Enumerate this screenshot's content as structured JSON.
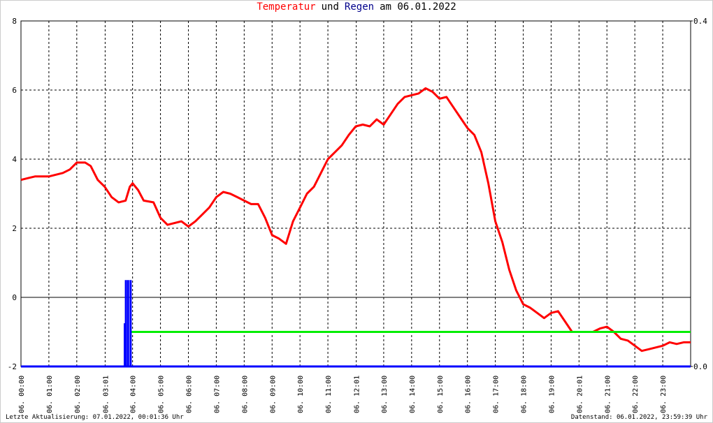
{
  "chart_data": {
    "type": "line",
    "title": [
      "Temperatur",
      "und",
      "Regen",
      "am 06.01.2022"
    ],
    "title_colors": [
      "#ff0000",
      "#000000",
      "#00008b",
      "#000000"
    ],
    "xlim": [
      0,
      24
    ],
    "ylim": [
      -2,
      8
    ],
    "y2lim": [
      0,
      0.4
    ],
    "yticks": [
      -2,
      0,
      2,
      4,
      6,
      8
    ],
    "y2ticks": [
      {
        "value": 0,
        "label": "0.0"
      },
      {
        "value": 0.4,
        "label": "0.4"
      }
    ],
    "xticks": [
      {
        "value": 0,
        "label": "06. 00:00"
      },
      {
        "value": 1,
        "label": "06. 01:00"
      },
      {
        "value": 2,
        "label": "06. 02:00"
      },
      {
        "value": 3.0167,
        "label": "06. 03:01"
      },
      {
        "value": 4,
        "label": "06. 04:00"
      },
      {
        "value": 5,
        "label": "06. 05:00"
      },
      {
        "value": 6,
        "label": "06. 06:00"
      },
      {
        "value": 7,
        "label": "06. 07:00"
      },
      {
        "value": 8,
        "label": "06. 08:00"
      },
      {
        "value": 9,
        "label": "06. 09:00"
      },
      {
        "value": 10,
        "label": "06. 10:00"
      },
      {
        "value": 11,
        "label": "06. 11:00"
      },
      {
        "value": 12.0167,
        "label": "06. 12:01"
      },
      {
        "value": 13,
        "label": "06. 13:00"
      },
      {
        "value": 14,
        "label": "06. 14:00"
      },
      {
        "value": 15,
        "label": "06. 15:00"
      },
      {
        "value": 16,
        "label": "06. 16:00"
      },
      {
        "value": 17,
        "label": "06. 17:00"
      },
      {
        "value": 18,
        "label": "06. 18:00"
      },
      {
        "value": 19,
        "label": "06. 19:00"
      },
      {
        "value": 20,
        "label": "06. 20:01"
      },
      {
        "value": 21,
        "label": "06. 21:00"
      },
      {
        "value": 22,
        "label": "06. 22:00"
      },
      {
        "value": 23,
        "label": "06. 23:00"
      }
    ],
    "grid": true,
    "series": [
      {
        "name": "Temperatur",
        "color": "#ff0000",
        "type": "line",
        "x": [
          0,
          0.25,
          0.5,
          1,
          1.5,
          1.75,
          2,
          2.3,
          2.5,
          2.75,
          3,
          3.25,
          3.5,
          3.75,
          3.9,
          4,
          4.2,
          4.4,
          4.75,
          5,
          5.25,
          5.75,
          6,
          6.25,
          6.5,
          6.75,
          7,
          7.25,
          7.5,
          7.75,
          8,
          8.25,
          8.5,
          8.75,
          9,
          9.25,
          9.5,
          9.75,
          10,
          10.25,
          10.5,
          10.75,
          11,
          11.25,
          11.5,
          11.75,
          12,
          12.25,
          12.5,
          12.75,
          13,
          13.25,
          13.5,
          13.75,
          14,
          14.25,
          14.5,
          14.75,
          15,
          15.25,
          15.5,
          15.75,
          16,
          16.25,
          16.5,
          16.75,
          17,
          17.25,
          17.5,
          17.75,
          18,
          18.25,
          18.5,
          18.75,
          19,
          19.25,
          19.5,
          19.75,
          20,
          20.5,
          20.75,
          21,
          21.25,
          21.5,
          21.75,
          22,
          22.25,
          22.5,
          22.75,
          23,
          23.25,
          23.5,
          23.75,
          24
        ],
        "values": [
          3.4,
          3.45,
          3.5,
          3.5,
          3.6,
          3.7,
          3.9,
          3.9,
          3.8,
          3.4,
          3.2,
          2.9,
          2.75,
          2.8,
          3.2,
          3.3,
          3.1,
          2.8,
          2.75,
          2.3,
          2.1,
          2.2,
          2.05,
          2.2,
          2.4,
          2.6,
          2.9,
          3.05,
          3,
          2.9,
          2.8,
          2.7,
          2.7,
          2.3,
          1.8,
          1.7,
          1.55,
          2.2,
          2.6,
          3,
          3.2,
          3.6,
          4,
          4.2,
          4.4,
          4.7,
          4.95,
          5,
          4.95,
          5.15,
          5,
          5.3,
          5.6,
          5.8,
          5.85,
          5.9,
          6.05,
          5.95,
          5.75,
          5.8,
          5.5,
          5.2,
          4.9,
          4.7,
          4.2,
          3.3,
          2.2,
          1.6,
          0.8,
          0.2,
          -0.2,
          -0.3,
          -0.45,
          -0.6,
          -0.45,
          -0.4,
          -0.7,
          -1,
          -1,
          -1,
          -0.9,
          -0.85,
          -1,
          -1.2,
          -1.25,
          -1.4,
          -1.55,
          -1.5,
          -1.45,
          -1.4,
          -1.3,
          -1.35,
          -1.3,
          -1.3
        ]
      },
      {
        "color": "#00ee00",
        "type": "line",
        "x": [
          3.95,
          24
        ],
        "values": [
          -1,
          -1
        ]
      },
      {
        "name": "Regen",
        "color": "#0000ff",
        "type": "bar",
        "axis": "y2",
        "x": [
          3.72,
          3.76,
          3.84,
          3.93
        ],
        "values": [
          0.05,
          0.1,
          0.1,
          0.1
        ]
      }
    ],
    "footer_left": "Letzte Aktualisierung: 07.01.2022, 00:01:36 Uhr",
    "footer_right": "Datenstand: 06.01.2022, 23:59:39 Uhr"
  }
}
